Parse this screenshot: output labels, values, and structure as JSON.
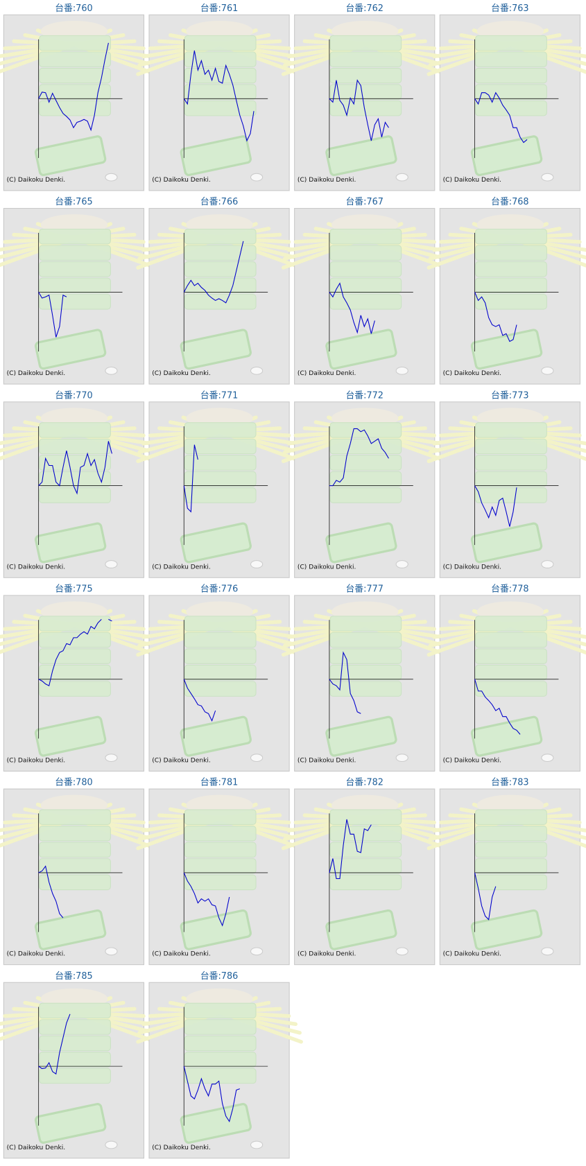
{
  "copyright": "(C) Daikoku Denki.",
  "chart_data": [
    {
      "type": "line",
      "title": "台番:760",
      "color": "#0000cc",
      "xlim": [
        0,
        24
      ],
      "ylim": [
        -100,
        100
      ],
      "values": [
        0,
        11,
        10,
        -6,
        9,
        -3,
        -15,
        -25,
        -30,
        -36,
        -49,
        -40,
        -38,
        -35,
        -38,
        -53,
        -28,
        10,
        35,
        66,
        94
      ]
    },
    {
      "type": "line",
      "title": "台番:761",
      "color": "#0000cc",
      "xlim": [
        0,
        24
      ],
      "ylim": [
        -100,
        100
      ],
      "values": [
        0,
        -9,
        41,
        81,
        48,
        64,
        41,
        48,
        31,
        51,
        29,
        26,
        56,
        41,
        23,
        -3,
        -28,
        -46,
        -71,
        -59,
        -21
      ]
    },
    {
      "type": "line",
      "title": "台番:762",
      "color": "#0000cc",
      "xlim": [
        0,
        24
      ],
      "ylim": [
        -100,
        100
      ],
      "values": [
        0,
        -6,
        31,
        -3,
        -11,
        -28,
        1,
        -9,
        31,
        22,
        -15,
        -44,
        -71,
        -44,
        -34,
        -65,
        -40,
        -49
      ]
    },
    {
      "type": "line",
      "title": "台番:763",
      "color": "#0000cc",
      "xlim": [
        0,
        24
      ],
      "ylim": [
        -100,
        100
      ],
      "values": [
        0,
        -9,
        10,
        10,
        6,
        -6,
        10,
        1,
        -11,
        -19,
        -28,
        -49,
        -49,
        -65,
        -74,
        -69
      ]
    },
    {
      "type": "line",
      "title": "台番:765",
      "color": "#0000cc",
      "xlim": [
        0,
        24
      ],
      "ylim": [
        -100,
        100
      ],
      "values": [
        0,
        -10,
        -8,
        -5,
        -39,
        -76,
        -58,
        -5,
        -8
      ]
    },
    {
      "type": "line",
      "title": "台番:766",
      "color": "#0000cc",
      "xlim": [
        0,
        24
      ],
      "ylim": [
        -100,
        100
      ],
      "values": [
        0,
        11,
        20,
        11,
        15,
        8,
        3,
        -5,
        -10,
        -14,
        -11,
        -14,
        -18,
        -5,
        11,
        36,
        61,
        86
      ]
    },
    {
      "type": "line",
      "title": "台番:767",
      "color": "#0000cc",
      "xlim": [
        0,
        24
      ],
      "ylim": [
        -100,
        100
      ],
      "values": [
        0,
        -8,
        5,
        15,
        -8,
        -18,
        -30,
        -51,
        -68,
        -39,
        -58,
        -45,
        -70,
        -48
      ]
    },
    {
      "type": "line",
      "title": "台番:768",
      "color": "#0000cc",
      "xlim": [
        0,
        24
      ],
      "ylim": [
        -100,
        100
      ],
      "values": [
        0,
        -14,
        -8,
        -18,
        -43,
        -55,
        -58,
        -55,
        -73,
        -70,
        -83,
        -80,
        -55
      ]
    },
    {
      "type": "line",
      "title": "台番:770",
      "color": "#0000cc",
      "xlim": [
        0,
        24
      ],
      "ylim": [
        -100,
        100
      ],
      "values": [
        0,
        6,
        46,
        34,
        34,
        6,
        0,
        31,
        59,
        31,
        0,
        -13,
        31,
        34,
        54,
        34,
        44,
        21,
        6,
        31,
        75,
        54
      ]
    },
    {
      "type": "line",
      "title": "台番:771",
      "color": "#0000cc",
      "xlim": [
        0,
        24
      ],
      "ylim": [
        -100,
        100
      ],
      "values": [
        0,
        -38,
        -44,
        69,
        44
      ]
    },
    {
      "type": "line",
      "title": "台番:772",
      "color": "#0000cc",
      "xlim": [
        0,
        24
      ],
      "ylim": [
        -100,
        100
      ],
      "values": [
        0,
        0,
        9,
        6,
        13,
        50,
        71,
        96,
        96,
        91,
        94,
        84,
        71,
        75,
        79,
        63,
        56,
        46
      ]
    },
    {
      "type": "line",
      "title": "台番:773",
      "color": "#0000cc",
      "xlim": [
        0,
        24
      ],
      "ylim": [
        -100,
        100
      ],
      "values": [
        0,
        -10,
        -29,
        -41,
        -54,
        -36,
        -50,
        -25,
        -21,
        -44,
        -69,
        -44,
        -3
      ]
    },
    {
      "type": "line",
      "title": "台番:775",
      "color": "#0000cc",
      "xlim": [
        0,
        24
      ],
      "ylim": [
        -100,
        100
      ],
      "values": [
        0,
        -3,
        -8,
        -11,
        14,
        33,
        45,
        48,
        60,
        58,
        70,
        70,
        76,
        80,
        76,
        89,
        85,
        95,
        101,
        null,
        101,
        98
      ]
    },
    {
      "type": "line",
      "title": "台番:776",
      "color": "#0000cc",
      "xlim": [
        0,
        24
      ],
      "ylim": [
        -100,
        100
      ],
      "values": [
        0,
        -15,
        -24,
        -33,
        -43,
        -45,
        -55,
        -58,
        -70,
        -53
      ]
    },
    {
      "type": "line",
      "title": "台番:777",
      "color": "#0000cc",
      "xlim": [
        0,
        24
      ],
      "ylim": [
        -100,
        100
      ],
      "values": [
        0,
        -8,
        -11,
        -18,
        45,
        33,
        -24,
        -36,
        -55,
        -58
      ]
    },
    {
      "type": "line",
      "title": "台番:778",
      "color": "#0000cc",
      "xlim": [
        0,
        24
      ],
      "ylim": [
        -100,
        100
      ],
      "values": [
        0,
        -20,
        -20,
        -30,
        -36,
        -43,
        -53,
        -49,
        -63,
        -63,
        -74,
        -83,
        -86,
        -93
      ]
    },
    {
      "type": "line",
      "title": "台番:780",
      "color": "#0000cc",
      "xlim": [
        0,
        24
      ],
      "ylim": [
        -100,
        100
      ],
      "values": [
        0,
        3,
        11,
        -16,
        -35,
        -48,
        -69,
        -76
      ]
    },
    {
      "type": "line",
      "title": "台番:781",
      "color": "#0000cc",
      "xlim": [
        0,
        24
      ],
      "ylim": [
        -100,
        100
      ],
      "values": [
        0,
        -14,
        -23,
        -35,
        -51,
        -44,
        -48,
        -44,
        -54,
        -56,
        -76,
        -89,
        -69,
        -41
      ]
    },
    {
      "type": "line",
      "title": "台番:782",
      "color": "#0000cc",
      "xlim": [
        0,
        24
      ],
      "ylim": [
        -100,
        100
      ],
      "values": [
        0,
        24,
        -10,
        -10,
        46,
        90,
        65,
        65,
        36,
        34,
        74,
        71,
        81
      ]
    },
    {
      "type": "line",
      "title": "台番:783",
      "color": "#0000cc",
      "xlim": [
        0,
        24
      ],
      "ylim": [
        -100,
        100
      ],
      "values": [
        0,
        -26,
        -56,
        -73,
        -79,
        -41,
        -23
      ]
    },
    {
      "type": "line",
      "title": "台番:785",
      "color": "#0000cc",
      "xlim": [
        0,
        24
      ],
      "ylim": [
        -100,
        100
      ],
      "values": [
        0,
        -4,
        -3,
        6,
        -9,
        -13,
        23,
        48,
        73,
        88
      ]
    },
    {
      "type": "line",
      "title": "台番:786",
      "color": "#0000cc",
      "xlim": [
        0,
        24
      ],
      "ylim": [
        -100,
        100
      ],
      "values": [
        0,
        -25,
        -50,
        -55,
        -40,
        -21,
        -38,
        -50,
        -30,
        -30,
        -25,
        -63,
        -84,
        -93,
        -71,
        -40,
        -38
      ]
    }
  ]
}
